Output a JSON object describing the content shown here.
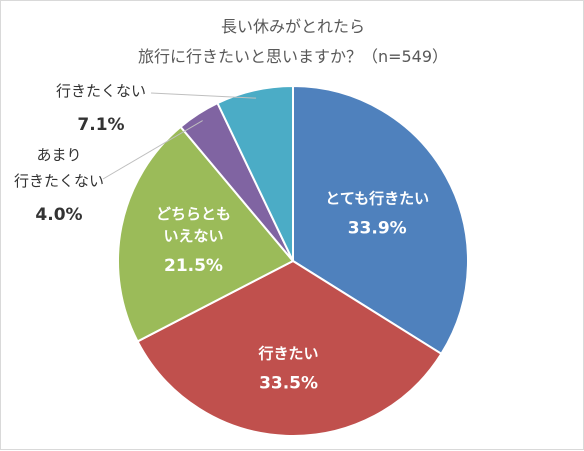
{
  "chart_data": {
    "type": "pie",
    "title_lines": [
      "長い休みがとれたら",
      "旅行に行きたいと思いますか？（n=549）"
    ],
    "slices": [
      {
        "label_lines": [
          "とても行きたい"
        ],
        "value": 33.9,
        "value_text": "33.9%",
        "color": "#4f81bd",
        "label_placement": "inside"
      },
      {
        "label_lines": [
          "行きたい"
        ],
        "value": 33.5,
        "value_text": "33.5%",
        "color": "#c0504d",
        "label_placement": "inside"
      },
      {
        "label_lines": [
          "どちらとも",
          "いえない"
        ],
        "value": 21.5,
        "value_text": "21.5%",
        "color": "#9bbb59",
        "label_placement": "inside"
      },
      {
        "label_lines": [
          "あまり",
          "行きたくない"
        ],
        "value": 4.0,
        "value_text": "4.0%",
        "color": "#8064a2",
        "label_placement": "outside"
      },
      {
        "label_lines": [
          "行きたくない"
        ],
        "value": 7.1,
        "value_text": "7.1%",
        "color": "#4bacc6",
        "label_placement": "outside"
      }
    ],
    "start_angle_deg": 0,
    "direction": "clockwise",
    "legend": "none"
  }
}
